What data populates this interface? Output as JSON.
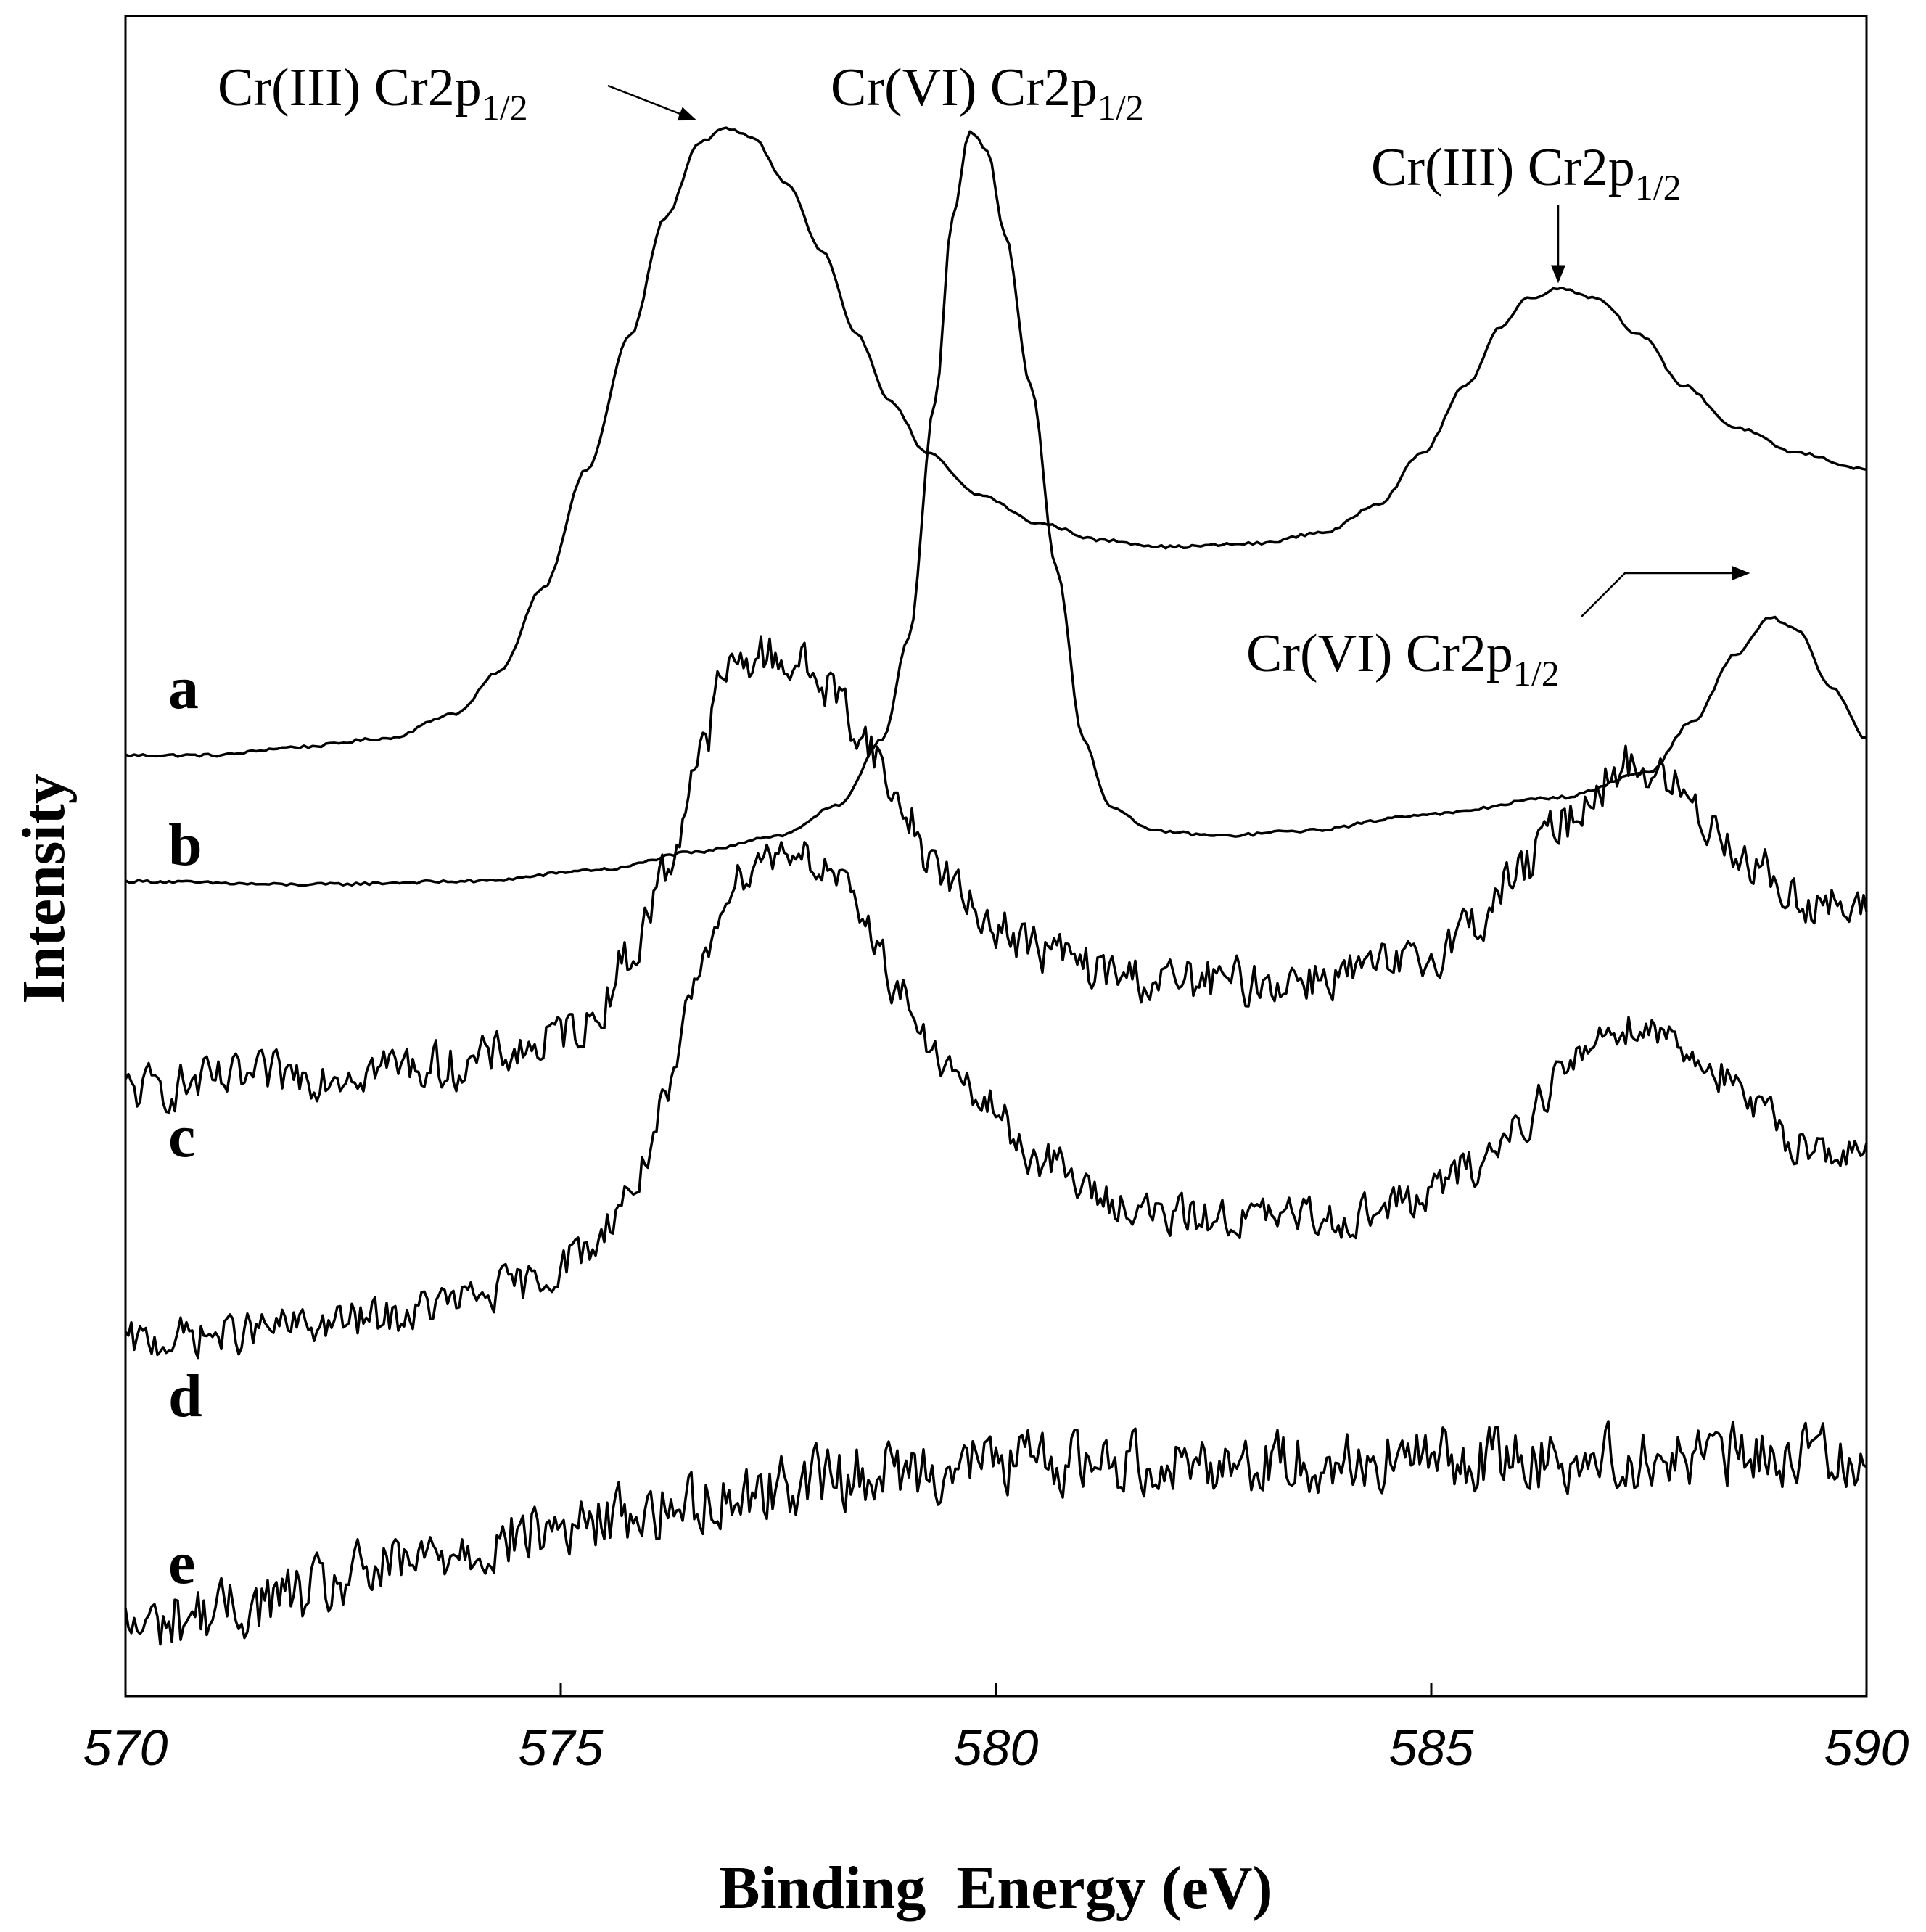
{
  "chart_data": {
    "type": "line",
    "title": "",
    "xlabel": "Binding  Energy (eV)",
    "ylabel": "Intensity",
    "xlim": [
      570,
      590
    ],
    "ylim": [
      0,
      100
    ],
    "xticks": [
      "570",
      "575",
      "580",
      "585",
      "590"
    ],
    "xtick_values": [
      570,
      575,
      580,
      585,
      590
    ],
    "grid": false,
    "legend": "none",
    "series": [
      {
        "name": "a",
        "style": "smooth",
        "points": [
          [
            570,
            56
          ],
          [
            571,
            56
          ],
          [
            572,
            56.5
          ],
          [
            573,
            57
          ],
          [
            573.8,
            58.5
          ],
          [
            574.3,
            61
          ],
          [
            574.8,
            66
          ],
          [
            575.3,
            73
          ],
          [
            575.8,
            81
          ],
          [
            576.2,
            88
          ],
          [
            576.6,
            92.5
          ],
          [
            576.9,
            93.3
          ],
          [
            577.2,
            92.8
          ],
          [
            577.6,
            90
          ],
          [
            578.0,
            86
          ],
          [
            578.4,
            81
          ],
          [
            578.8,
            77
          ],
          [
            579.2,
            74
          ],
          [
            579.8,
            71.5
          ],
          [
            580.5,
            69.8
          ],
          [
            581.2,
            68.8
          ],
          [
            582,
            68.4
          ],
          [
            583,
            68.6
          ],
          [
            583.8,
            69.3
          ],
          [
            584.4,
            71
          ],
          [
            584.9,
            74
          ],
          [
            585.4,
            78
          ],
          [
            585.8,
            81.5
          ],
          [
            586.1,
            83.2
          ],
          [
            586.5,
            83.8
          ],
          [
            586.9,
            83.2
          ],
          [
            587.4,
            81
          ],
          [
            587.9,
            78
          ],
          [
            588.5,
            75.5
          ],
          [
            589.2,
            74
          ],
          [
            590,
            73
          ]
        ]
      },
      {
        "name": "b",
        "style": "smooth",
        "points": [
          [
            570,
            48.5
          ],
          [
            572,
            48.3
          ],
          [
            574,
            48.5
          ],
          [
            575.5,
            49.2
          ],
          [
            576.5,
            50.2
          ],
          [
            577.5,
            51.2
          ],
          [
            578.2,
            53
          ],
          [
            578.7,
            57
          ],
          [
            579.0,
            63
          ],
          [
            579.3,
            77
          ],
          [
            579.5,
            88
          ],
          [
            579.7,
            93.2
          ],
          [
            579.9,
            92
          ],
          [
            580.1,
            87
          ],
          [
            580.4,
            78
          ],
          [
            580.7,
            67
          ],
          [
            581,
            57
          ],
          [
            581.3,
            53
          ],
          [
            581.8,
            51.5
          ],
          [
            582.6,
            51.2
          ],
          [
            583.5,
            51.5
          ],
          [
            585,
            52.5
          ],
          [
            586.5,
            53.5
          ],
          [
            587.5,
            55
          ],
          [
            588,
            58
          ],
          [
            588.5,
            62
          ],
          [
            588.9,
            64.2
          ],
          [
            589.2,
            63.5
          ],
          [
            589.6,
            60
          ],
          [
            590,
            57
          ]
        ]
      },
      {
        "name": "c",
        "style": "noisy",
        "noise": 1.4,
        "points": [
          [
            570,
            36
          ],
          [
            571,
            36.5
          ],
          [
            572,
            37
          ],
          [
            573,
            37.5
          ],
          [
            573.8,
            37.5
          ],
          [
            574.6,
            38.5
          ],
          [
            575.3,
            40
          ],
          [
            575.8,
            44
          ],
          [
            576.2,
            49
          ],
          [
            576.6,
            56
          ],
          [
            576.9,
            61
          ],
          [
            577.3,
            62
          ],
          [
            577.7,
            61.5
          ],
          [
            578.1,
            60
          ],
          [
            578.5,
            57
          ],
          [
            578.9,
            53
          ],
          [
            579.3,
            49.5
          ],
          [
            579.8,
            46.5
          ],
          [
            580.5,
            44.5
          ],
          [
            581.3,
            43
          ],
          [
            582,
            42.5
          ],
          [
            583,
            42.5
          ],
          [
            584,
            43
          ],
          [
            584.8,
            43.5
          ],
          [
            585.5,
            46
          ],
          [
            586,
            49
          ],
          [
            586.5,
            52
          ],
          [
            587,
            54.5
          ],
          [
            587.3,
            55.5
          ],
          [
            587.7,
            54.5
          ],
          [
            588.2,
            52
          ],
          [
            588.7,
            49.5
          ],
          [
            589.2,
            47.5
          ],
          [
            590,
            46.5
          ]
        ]
      },
      {
        "name": "d",
        "style": "noisy",
        "noise": 1.2,
        "points": [
          [
            570,
            21
          ],
          [
            571,
            21.5
          ],
          [
            572,
            22
          ],
          [
            573,
            22.5
          ],
          [
            573.8,
            23.5
          ],
          [
            574.6,
            24.5
          ],
          [
            575.3,
            26.5
          ],
          [
            575.8,
            30
          ],
          [
            576.2,
            35
          ],
          [
            576.6,
            43
          ],
          [
            576.9,
            48
          ],
          [
            577.3,
            50
          ],
          [
            577.7,
            50.5
          ],
          [
            578.1,
            49
          ],
          [
            578.5,
            46
          ],
          [
            578.9,
            42
          ],
          [
            579.3,
            38
          ],
          [
            579.8,
            35.5
          ],
          [
            580.5,
            32
          ],
          [
            581.3,
            29.5
          ],
          [
            582,
            28.5
          ],
          [
            583,
            28.5
          ],
          [
            584,
            28.5
          ],
          [
            584.8,
            29.5
          ],
          [
            585.5,
            31.5
          ],
          [
            586,
            34
          ],
          [
            586.5,
            37
          ],
          [
            587,
            39.5
          ],
          [
            587.3,
            40
          ],
          [
            587.7,
            39.5
          ],
          [
            588.2,
            37.5
          ],
          [
            588.7,
            35
          ],
          [
            589.2,
            33
          ],
          [
            590,
            32
          ]
        ]
      },
      {
        "name": "e",
        "style": "noisy",
        "noise": 1.9,
        "points": [
          [
            570,
            4
          ],
          [
            571,
            5
          ],
          [
            572,
            6
          ],
          [
            573,
            7.5
          ],
          [
            574,
            9
          ],
          [
            575,
            10
          ],
          [
            576,
            11
          ],
          [
            577,
            12
          ],
          [
            578,
            13
          ],
          [
            579,
            13.5
          ],
          [
            580,
            14
          ],
          [
            582,
            14
          ],
          [
            584,
            14
          ],
          [
            586,
            14.2
          ],
          [
            588,
            14.2
          ],
          [
            590,
            14.5
          ]
        ]
      }
    ],
    "series_labels": [
      "a",
      "b",
      "c",
      "d",
      "e"
    ],
    "annotations": [
      {
        "main": "Cr(III) Cr2p",
        "sub": "1/2"
      },
      {
        "main": "Cr(VI) Cr2p",
        "sub": "1/2"
      },
      {
        "main": "Cr(III) Cr2p",
        "sub": "1/2"
      },
      {
        "main": "Cr(VI) Cr2p",
        "sub": "1/2"
      }
    ]
  }
}
